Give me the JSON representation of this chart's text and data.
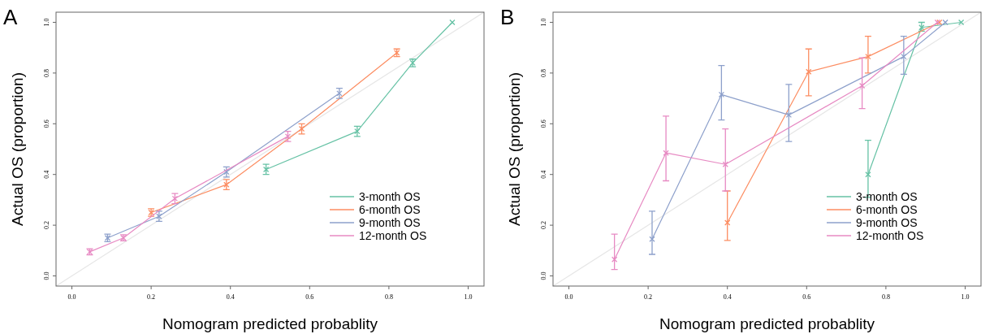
{
  "chart_data": [
    {
      "type": "line",
      "title": "A",
      "xlabel": "Nomogram predicted probablity",
      "ylabel": "Actual OS (proportion)",
      "xlim": [
        -0.04,
        1.04
      ],
      "ylim": [
        -0.04,
        1.04
      ],
      "xticks": [
        {
          "value": 0,
          "label": "0.0"
        },
        {
          "value": 0.2,
          "label": "0.2"
        },
        {
          "value": 0.4,
          "label": "0.4"
        },
        {
          "value": 0.6,
          "label": "0.6"
        },
        {
          "value": 0.8,
          "label": "0.8"
        },
        {
          "value": 1,
          "label": "1.0"
        }
      ],
      "yticks": [
        {
          "value": 0,
          "label": "0.0"
        },
        {
          "value": 0.2,
          "label": "0.2"
        },
        {
          "value": 0.4,
          "label": "0.4"
        },
        {
          "value": 0.6,
          "label": "0.6"
        },
        {
          "value": 0.8,
          "label": "0.8"
        },
        {
          "value": 1,
          "label": "1.0"
        }
      ],
      "grid": false,
      "legend": "bottom right",
      "marker": "cross",
      "series": [
        {
          "color": "#e6e6e6",
          "marker": "none",
          "x": [
            -0.04,
            1.04
          ],
          "values": [
            -0.04,
            1.04
          ]
        },
        {
          "name": "3-month OS",
          "color": "#66c2a5",
          "x": [
            0.49,
            0.72,
            0.86,
            0.96
          ],
          "values": [
            0.42,
            0.57,
            0.84,
            1.0
          ],
          "errors": [
            0.02,
            0.02,
            0.015,
            null
          ]
        },
        {
          "name": "6-month OS",
          "color": "#fc8d62",
          "x": [
            0.2,
            0.39,
            0.58,
            0.82
          ],
          "values": [
            0.25,
            0.36,
            0.58,
            0.88
          ],
          "errors": [
            0.015,
            0.02,
            0.02,
            0.015
          ]
        },
        {
          "name": "9-month OS",
          "color": "#8da0cb",
          "x": [
            0.09,
            0.22,
            0.39,
            0.675
          ],
          "values": [
            0.15,
            0.235,
            0.41,
            0.72
          ],
          "errors": [
            0.015,
            0.02,
            0.02,
            0.02
          ]
        },
        {
          "name": "12-month OS",
          "color": "#e78ac3",
          "x": [
            0.045,
            0.13,
            0.26,
            0.545
          ],
          "values": [
            0.095,
            0.15,
            0.305,
            0.55
          ],
          "errors": [
            0.012,
            0.012,
            0.02,
            0.02
          ]
        }
      ]
    },
    {
      "type": "line",
      "title": "B",
      "xlabel": "Nomogram predicted probablity",
      "ylabel": "Actual OS (proportion)",
      "xlim": [
        -0.04,
        1.04
      ],
      "ylim": [
        -0.04,
        1.04
      ],
      "xticks": [
        {
          "value": 0,
          "label": "0.0"
        },
        {
          "value": 0.2,
          "label": "0.2"
        },
        {
          "value": 0.4,
          "label": "0.4"
        },
        {
          "value": 0.6,
          "label": "0.6"
        },
        {
          "value": 0.8,
          "label": "0.8"
        },
        {
          "value": 1,
          "label": "1.0"
        }
      ],
      "yticks": [
        {
          "value": 0,
          "label": "0.0"
        },
        {
          "value": 0.2,
          "label": "0.2"
        },
        {
          "value": 0.4,
          "label": "0.4"
        },
        {
          "value": 0.6,
          "label": "0.6"
        },
        {
          "value": 0.8,
          "label": "0.8"
        },
        {
          "value": 1,
          "label": "1.0"
        }
      ],
      "grid": false,
      "legend": "bottom right",
      "marker": "cross",
      "series": [
        {
          "color": "#e6e6e6",
          "marker": "none",
          "x": [
            -0.04,
            1.04
          ],
          "values": [
            -0.04,
            1.04
          ]
        },
        {
          "name": "3-month OS",
          "color": "#66c2a5",
          "x": [
            0.755,
            0.89,
            0.99
          ],
          "values": [
            0.4,
            0.98,
            1.0
          ],
          "errors": [
            [
              0.31,
              0.535
            ],
            [
              0.965,
              1.0
            ],
            null
          ]
        },
        {
          "name": "6-month OS",
          "color": "#fc8d62",
          "x": [
            0.4,
            0.605,
            0.755,
            0.935
          ],
          "values": [
            0.21,
            0.805,
            0.865,
            1.0
          ],
          "errors": [
            [
              0.14,
              0.335
            ],
            [
              0.71,
              0.895
            ],
            [
              0.8,
              0.945
            ],
            null
          ]
        },
        {
          "name": "9-month OS",
          "color": "#8da0cb",
          "x": [
            0.21,
            0.385,
            0.555,
            0.845,
            0.95
          ],
          "values": [
            0.145,
            0.715,
            0.635,
            0.865,
            1.0
          ],
          "errors": [
            [
              0.085,
              0.255
            ],
            [
              0.615,
              0.83
            ],
            [
              0.53,
              0.755
            ],
            [
              0.795,
              0.945
            ],
            null
          ]
        },
        {
          "name": "12-month OS",
          "color": "#e78ac3",
          "x": [
            0.115,
            0.245,
            0.395,
            0.74,
            0.93
          ],
          "values": [
            0.065,
            0.485,
            0.44,
            0.75,
            1.0
          ],
          "errors": [
            [
              0.025,
              0.165
            ],
            [
              0.375,
              0.63
            ],
            [
              0.335,
              0.58
            ],
            [
              0.66,
              0.86
            ],
            null
          ]
        }
      ]
    }
  ]
}
